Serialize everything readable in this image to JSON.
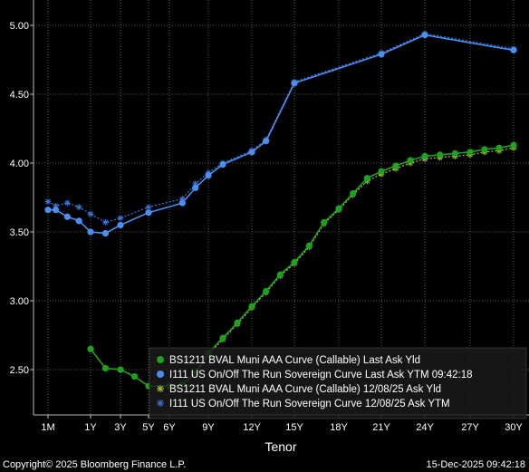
{
  "chart_data": {
    "type": "line",
    "title": "",
    "xlabel": "Tenor",
    "ylabel": "",
    "ylim": [
      2.2,
      5.15
    ],
    "grid": true,
    "legend_position": "bottom-right",
    "x_ticks": [
      {
        "label": "1M",
        "t": 0.083
      },
      {
        "label": "1Y",
        "t": 1
      },
      {
        "label": "3Y",
        "t": 3
      },
      {
        "label": "5Y",
        "t": 5
      },
      {
        "label": "6Y",
        "t": 6
      },
      {
        "label": "9Y",
        "t": 9
      },
      {
        "label": "12Y",
        "t": 12
      },
      {
        "label": "15Y",
        "t": 15
      },
      {
        "label": "18Y",
        "t": 18
      },
      {
        "label": "21Y",
        "t": 21
      },
      {
        "label": "24Y",
        "t": 24
      },
      {
        "label": "27Y",
        "t": 27
      },
      {
        "label": "30Y",
        "t": 30
      }
    ],
    "y_ticks": [
      "2.50",
      "3.00",
      "3.50",
      "4.00",
      "4.50",
      "5.00"
    ],
    "series": [
      {
        "name": "BS1211 BVAL Muni AAA Curve (Callable) Last Ask Yld",
        "color": "#1fa01f",
        "marker": "dot",
        "points": [
          [
            1,
            2.65
          ],
          [
            2,
            2.51
          ],
          [
            3,
            2.5
          ],
          [
            4,
            2.45
          ],
          [
            5,
            2.38
          ],
          [
            6,
            2.38
          ],
          [
            7,
            2.39
          ],
          [
            8,
            2.48
          ],
          [
            9,
            2.62
          ],
          [
            10,
            2.73
          ],
          [
            11,
            2.84
          ],
          [
            12,
            2.96
          ],
          [
            13,
            3.07
          ],
          [
            14,
            3.19
          ],
          [
            15,
            3.28
          ],
          [
            16,
            3.4
          ],
          [
            17,
            3.57
          ],
          [
            18,
            3.67
          ],
          [
            19,
            3.78
          ],
          [
            20,
            3.89
          ],
          [
            21,
            3.94
          ],
          [
            22,
            3.98
          ],
          [
            23,
            4.02
          ],
          [
            24,
            4.05
          ],
          [
            25,
            4.06
          ],
          [
            26,
            4.07
          ],
          [
            27,
            4.08
          ],
          [
            28,
            4.1
          ],
          [
            29,
            4.11
          ],
          [
            30,
            4.13
          ]
        ]
      },
      {
        "name": "I111 US On/Off The Run Sovereign Curve Last Ask YTM 09:42:18",
        "color": "#4c8ff0",
        "marker": "dot",
        "points": [
          [
            0.083,
            3.66
          ],
          [
            0.25,
            3.66
          ],
          [
            0.5,
            3.61
          ],
          [
            0.75,
            3.58
          ],
          [
            1,
            3.5
          ],
          [
            2,
            3.49
          ],
          [
            3,
            3.55
          ],
          [
            5,
            3.64
          ],
          [
            7,
            3.71
          ],
          [
            8,
            3.82
          ],
          [
            9,
            3.91
          ],
          [
            10,
            3.99
          ],
          [
            12,
            4.08
          ],
          [
            13,
            4.16
          ],
          [
            15,
            4.58
          ],
          [
            21,
            4.79
          ],
          [
            24,
            4.93
          ],
          [
            30,
            4.82
          ]
        ]
      },
      {
        "name": "BS1211 BVAL Muni AAA Curve (Callable) 12/08/25 Ask Yld",
        "color": "#a8c63a",
        "marker": "asterisk",
        "points": [
          [
            1,
            2.65
          ],
          [
            2,
            2.51
          ],
          [
            3,
            2.5
          ],
          [
            4,
            2.45
          ],
          [
            5,
            2.38
          ],
          [
            6,
            2.38
          ],
          [
            7,
            2.39
          ],
          [
            8,
            2.47
          ],
          [
            9,
            2.61
          ],
          [
            10,
            2.72
          ],
          [
            11,
            2.83
          ],
          [
            12,
            2.95
          ],
          [
            13,
            3.06
          ],
          [
            14,
            3.18
          ],
          [
            15,
            3.27
          ],
          [
            16,
            3.39
          ],
          [
            17,
            3.56
          ],
          [
            18,
            3.66
          ],
          [
            19,
            3.77
          ],
          [
            20,
            3.87
          ],
          [
            21,
            3.92
          ],
          [
            22,
            3.96
          ],
          [
            23,
            4.0
          ],
          [
            24,
            4.03
          ],
          [
            25,
            4.04
          ],
          [
            26,
            4.05
          ],
          [
            27,
            4.06
          ],
          [
            28,
            4.08
          ],
          [
            29,
            4.09
          ],
          [
            30,
            4.11
          ]
        ]
      },
      {
        "name": "I111 US On/Off The Run Sovereign Curve 12/08/25 Ask YTM",
        "color": "#3a78d8",
        "marker": "asterisk",
        "points": [
          [
            0.083,
            3.72
          ],
          [
            0.25,
            3.69
          ],
          [
            0.5,
            3.71
          ],
          [
            0.75,
            3.68
          ],
          [
            1,
            3.63
          ],
          [
            2,
            3.57
          ],
          [
            3,
            3.6
          ],
          [
            5,
            3.68
          ],
          [
            7,
            3.74
          ],
          [
            8,
            3.85
          ],
          [
            9,
            3.93
          ],
          [
            10,
            4.0
          ],
          [
            12,
            4.09
          ],
          [
            13,
            4.17
          ],
          [
            15,
            4.59
          ],
          [
            21,
            4.8
          ],
          [
            24,
            4.94
          ],
          [
            30,
            4.83
          ]
        ]
      }
    ]
  },
  "footer": {
    "copyright": "Copyright© 2025 Bloomberg Finance L.P.",
    "timestamp": "15-Dec-2025 09:42:18"
  }
}
